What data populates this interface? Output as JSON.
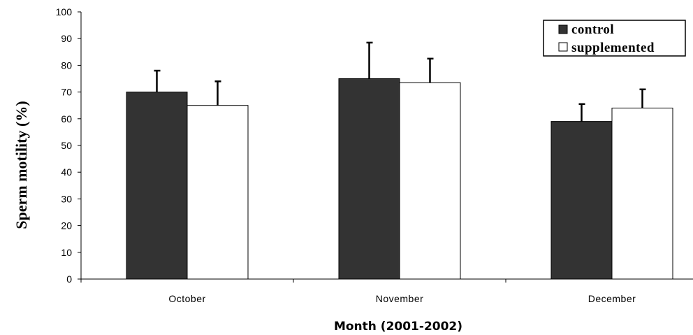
{
  "chart_data": {
    "type": "bar",
    "title": "",
    "xlabel": "Month (2001-2002)",
    "ylabel": "Sperm motility (%)",
    "ylim": [
      0,
      100
    ],
    "yticks": [
      0,
      10,
      20,
      30,
      40,
      50,
      60,
      70,
      80,
      90,
      100
    ],
    "categories": [
      "October",
      "November",
      "December"
    ],
    "series": [
      {
        "name": "control",
        "values": [
          70,
          75,
          59
        ],
        "errors": [
          8,
          13.5,
          6.5
        ],
        "color": "#333333"
      },
      {
        "name": "supplemented",
        "values": [
          65,
          73.5,
          64
        ],
        "errors": [
          9,
          9,
          7
        ],
        "color": "#ffffff"
      }
    ],
    "grid": false,
    "legend_position": "top-right"
  }
}
